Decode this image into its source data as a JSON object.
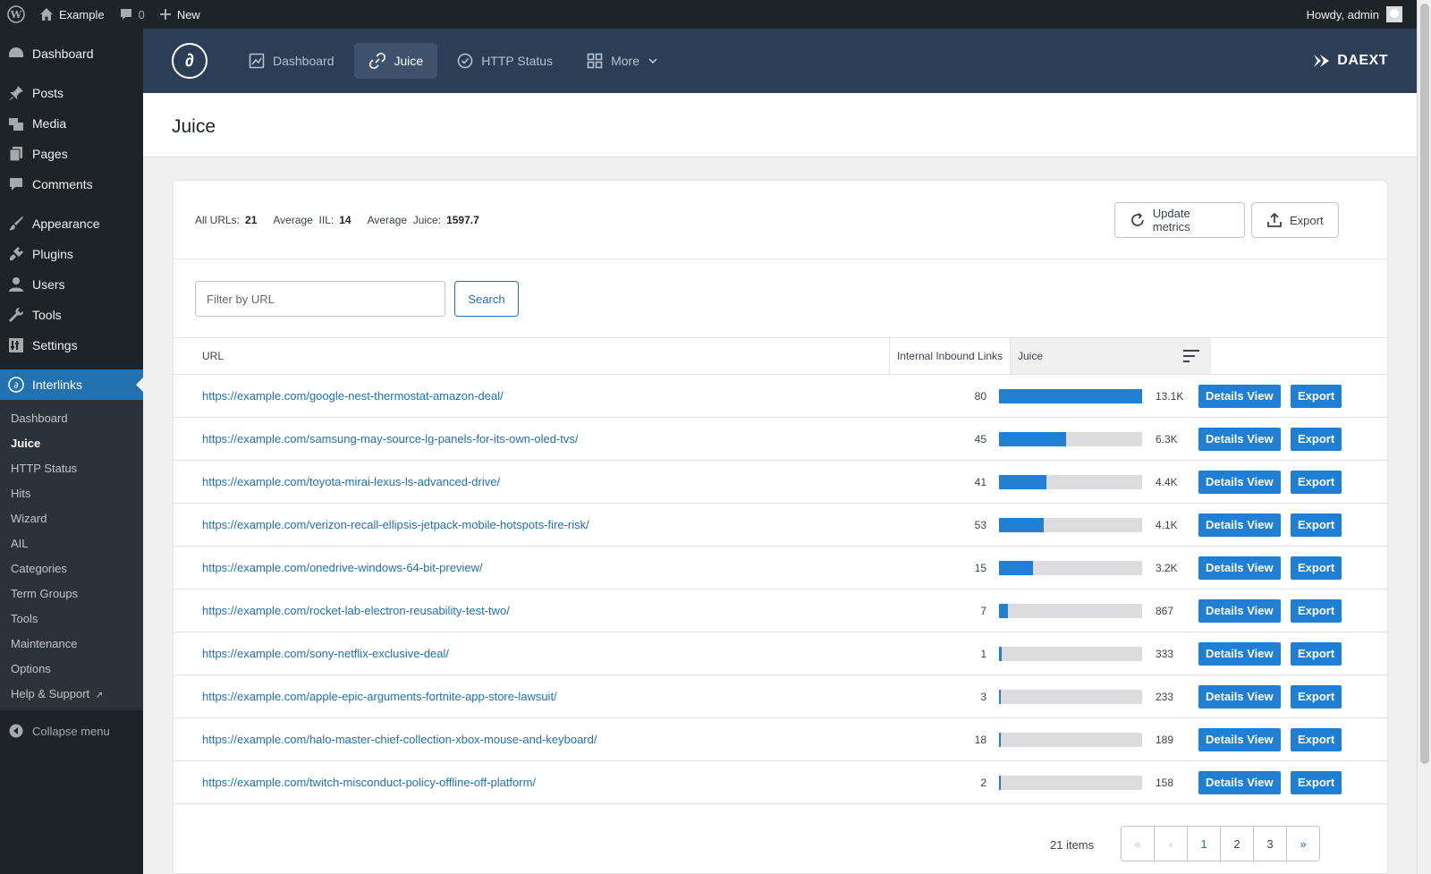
{
  "adminbar": {
    "site_name": "Example",
    "comments_count": "0",
    "new_label": "New",
    "howdy": "Howdy, admin"
  },
  "sidebar": {
    "menu": [
      {
        "label": "Dashboard",
        "icon": "dashboard-icon"
      },
      {
        "label": "Posts",
        "icon": "pin-icon"
      },
      {
        "label": "Media",
        "icon": "media-icon"
      },
      {
        "label": "Pages",
        "icon": "pages-icon"
      },
      {
        "label": "Comments",
        "icon": "comment-icon"
      },
      {
        "label": "Appearance",
        "icon": "brush-icon"
      },
      {
        "label": "Plugins",
        "icon": "plug-icon"
      },
      {
        "label": "Users",
        "icon": "user-icon"
      },
      {
        "label": "Tools",
        "icon": "wrench-icon"
      },
      {
        "label": "Settings",
        "icon": "settings-icon"
      },
      {
        "label": "Interlinks",
        "icon": "interlinks-icon"
      }
    ],
    "submenu": [
      "Dashboard",
      "Juice",
      "HTTP Status",
      "Hits",
      "Wizard",
      "AIL",
      "Categories",
      "Term Groups",
      "Tools",
      "Maintenance",
      "Options",
      "Help & Support"
    ],
    "collapse_label": "Collapse menu"
  },
  "plugin_nav": {
    "logo_glyph": "∂",
    "items": [
      "Dashboard",
      "Juice",
      "HTTP Status",
      "More"
    ],
    "brand": "DAEXT"
  },
  "page": {
    "title": "Juice"
  },
  "stats": {
    "all_urls_label": "All URLs:",
    "all_urls_value": "21",
    "avg_iil_label": "Average  IIL:",
    "avg_iil_value": "14",
    "avg_juice_label": "Average  Juice:",
    "avg_juice_value": "1597.7",
    "update_label": "Update metrics",
    "export_label": "Export"
  },
  "filter": {
    "placeholder": "Filter by URL",
    "search_label": "Search"
  },
  "table": {
    "headers": [
      "URL",
      "Internal Inbound Links",
      "Juice"
    ],
    "details_label": "Details View",
    "export_label": "Export",
    "rows": [
      {
        "url": "https://example.com/google-nest-thermostat-amazon-deal/",
        "iil": "80",
        "juice": "13.1K",
        "fill": 1.0
      },
      {
        "url": "https://example.com/samsung-may-source-lg-panels-for-its-own-oled-tvs/",
        "iil": "45",
        "juice": "6.3K",
        "fill": 0.47
      },
      {
        "url": "https://example.com/toyota-mirai-lexus-ls-advanced-drive/",
        "iil": "41",
        "juice": "4.4K",
        "fill": 0.33
      },
      {
        "url": "https://example.com/verizon-recall-ellipsis-jetpack-mobile-hotspots-fire-risk/",
        "iil": "53",
        "juice": "4.1K",
        "fill": 0.31
      },
      {
        "url": "https://example.com/onedrive-windows-64-bit-preview/",
        "iil": "15",
        "juice": "3.2K",
        "fill": 0.24
      },
      {
        "url": "https://example.com/rocket-lab-electron-reusability-test-two/",
        "iil": "7",
        "juice": "867",
        "fill": 0.06
      },
      {
        "url": "https://example.com/sony-netflix-exclusive-deal/",
        "iil": "1",
        "juice": "333",
        "fill": 0.02
      },
      {
        "url": "https://example.com/apple-epic-arguments-fortnite-app-store-lawsuit/",
        "iil": "3",
        "juice": "233",
        "fill": 0.015
      },
      {
        "url": "https://example.com/halo-master-chief-collection-xbox-mouse-and-keyboard/",
        "iil": "18",
        "juice": "189",
        "fill": 0.012
      },
      {
        "url": "https://example.com/twitch-misconduct-policy-offline-off-platform/",
        "iil": "2",
        "juice": "158",
        "fill": 0.01
      }
    ]
  },
  "pagination": {
    "items_label": "21 items",
    "first": "«",
    "prev": "‹",
    "pages": [
      "1",
      "2",
      "3"
    ],
    "last": "»"
  }
}
